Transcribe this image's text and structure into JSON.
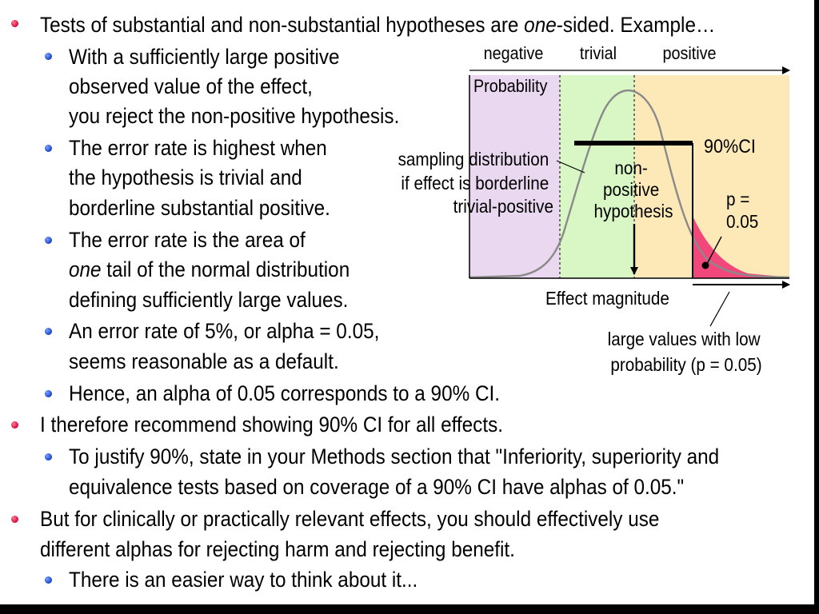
{
  "slide": {
    "l1": {
      "pre": "Tests of substantial and non-substantial hypotheses are ",
      "em": "one",
      "post": "-sided. Example…"
    },
    "l1a": [
      "With a sufficiently large positive",
      "observed value of the effect,",
      "you reject the non-positive hypothesis."
    ],
    "l1b": [
      "The error rate is highest when",
      "the hypothesis is trivial and",
      "borderline substantial positive."
    ],
    "l1c": {
      "line1": "The error rate is the area of",
      "em": "one",
      "line2_rest": " tail of the normal distribution",
      "line3": "defining sufficiently large values."
    },
    "l1d": [
      "An error rate of 5%, or alpha = 0.05,",
      "seems reasonable as a default."
    ],
    "l1e": "Hence, an alpha of 0.05 corresponds to a 90% CI.",
    "l2": "I therefore recommend showing 90% CI for all effects.",
    "l2a": [
      "To justify 90%, state in your Methods section that \"Inferiority, superiority and",
      "equivalence tests based on coverage of a 90% CI have alphas of 0.05.\""
    ],
    "l3": [
      "But for clinically or practically relevant effects, you should effectively use",
      "different alphas for rejecting harm and rejecting benefit."
    ],
    "l3a": "There is an easier way to think about it..."
  },
  "figure": {
    "region_negative": "negative",
    "region_trivial": "trivial",
    "region_positive": "positive",
    "y_label": "Probability",
    "x_label": "Effect magnitude",
    "ci_label": "90%CI",
    "sampling_label": [
      "sampling distribution",
      "if effect is borderline",
      "trivial-positive"
    ],
    "hypothesis_label": [
      "non-",
      "positive",
      "hypothesis"
    ],
    "p_label": [
      "p =",
      "0.05"
    ],
    "tail_label": [
      "large values with low",
      "probability (p = 0.05)"
    ],
    "colors": {
      "negative": "#ead8f0",
      "trivial": "#d8f7c4",
      "positive": "#fde9b8",
      "tail": "#f2477a",
      "curve": "#8a8a8a"
    }
  }
}
